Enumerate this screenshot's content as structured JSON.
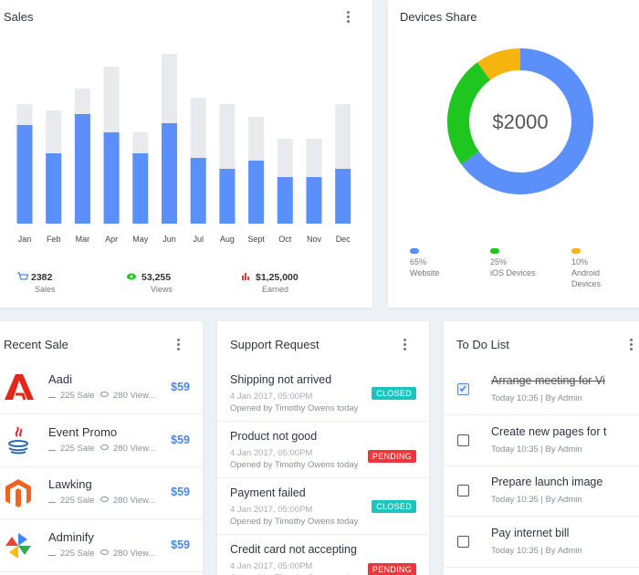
{
  "sales": {
    "title": "Sales",
    "chart_data": {
      "type": "bar",
      "categories": [
        "Jan",
        "Feb",
        "Mar",
        "Apr",
        "May",
        "Jun",
        "Jul",
        "Aug",
        "Sept",
        "Oct",
        "Nov",
        "Dec"
      ],
      "series": [
        {
          "color": "#e8eaed",
          "values": [
            131,
            124,
            148,
            172,
            100,
            186,
            138,
            131,
            117,
            93,
            93,
            131
          ]
        },
        {
          "color": "#5b8ff9",
          "values": [
            108,
            77,
            120,
            100,
            77,
            110,
            72,
            60,
            69,
            51,
            51,
            60
          ]
        }
      ],
      "ylim": [
        0,
        200
      ]
    },
    "stats": [
      {
        "value": "2382",
        "label": "Sales"
      },
      {
        "value": "53,255",
        "label": "Views"
      },
      {
        "value": "$1,25,000",
        "label": "Earned"
      }
    ]
  },
  "devices": {
    "title": "Devices Share",
    "chart_data": {
      "type": "pie",
      "center_label": "$2000",
      "categories": [
        "Website",
        "iOS Devices",
        "Android Devices"
      ],
      "values": [
        65,
        25,
        10
      ],
      "value_labels": [
        "65%",
        "25%",
        "10%"
      ],
      "colors": [
        "#5b8ff9",
        "#1fc61f",
        "#f6b40e"
      ]
    }
  },
  "recent_sale": {
    "title": "Recent Sale",
    "items": [
      {
        "name": "Aadi",
        "sales": "225 Sale",
        "views": "280 View...",
        "price": "$59"
      },
      {
        "name": "Event Promo",
        "sales": "225 Sale",
        "views": "280 View...",
        "price": "$59"
      },
      {
        "name": "Lawking",
        "sales": "225 Sale",
        "views": "280 View...",
        "price": "$59"
      },
      {
        "name": "Adminify",
        "sales": "225 Sale",
        "views": "280 View...",
        "price": "$59"
      }
    ]
  },
  "support": {
    "title": "Support Request",
    "items": [
      {
        "title": "Shipping not arrived",
        "date": "4 Jan 2017, 05:00PM",
        "opened": "Opened by Timothy Owens today",
        "status": "CLOSED"
      },
      {
        "title": "Product not good",
        "date": "4 Jan 2017, 05:00PM",
        "opened": "Opened by Timothy Owens today",
        "status": "PENDING"
      },
      {
        "title": "Payment failed",
        "date": "4 Jan 2017, 05:00PM",
        "opened": "Opened by Timothy Owens today",
        "status": "CLOSED"
      },
      {
        "title": "Credit card not accepting",
        "date": "4 Jan 2017, 05:00PM",
        "opened": "Opened by Timothy Owens today",
        "status": "PENDING"
      }
    ]
  },
  "todo": {
    "title": "To Do List",
    "items": [
      {
        "text": "Arrange meeting for Vi",
        "meta": "Today 10:35 | By Admin",
        "done": true
      },
      {
        "text": "Create new pages for t",
        "meta": "Today 10:35 | By Admin",
        "done": false
      },
      {
        "text": "Prepare launch image",
        "meta": "Today 10:35 | By Admin",
        "done": false
      },
      {
        "text": "Pay internet bill",
        "meta": "Today 10:35 | By Admin",
        "done": false
      }
    ]
  }
}
